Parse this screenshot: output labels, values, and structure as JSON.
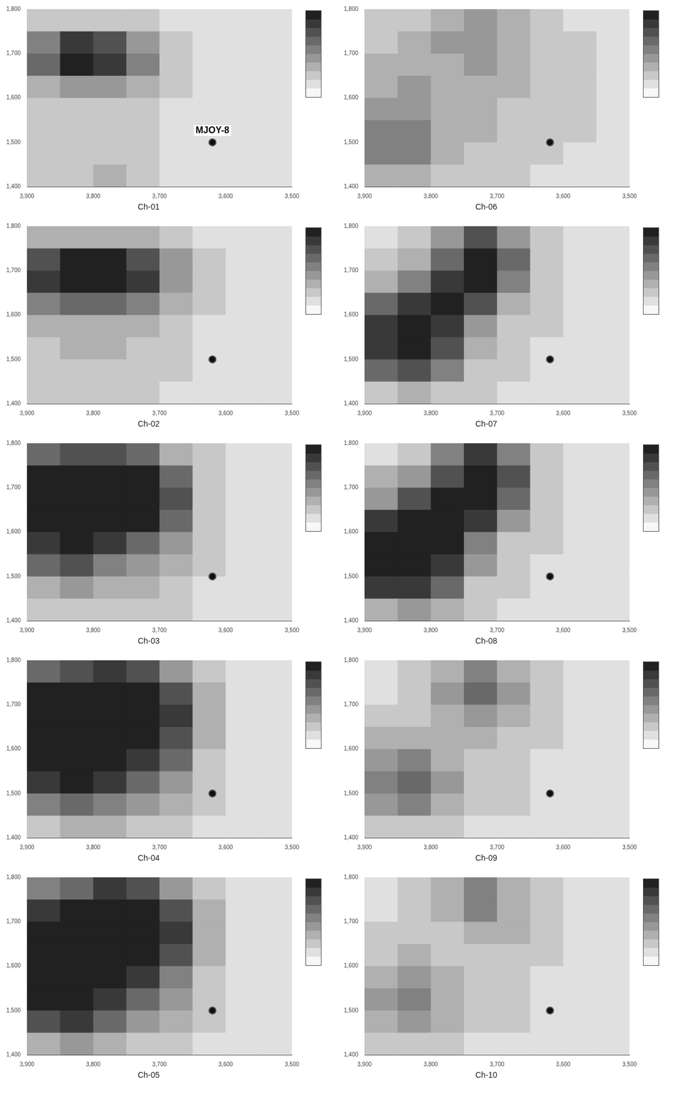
{
  "chart_data": [
    {
      "type": "heatmap",
      "title": "Ch-01",
      "xlim": [
        3900,
        3500
      ],
      "xticks": [
        3900,
        3800,
        3700,
        3600,
        3500
      ],
      "ylim": [
        1400,
        1800
      ],
      "yticks": [
        1400,
        1500,
        1600,
        1700,
        1800
      ],
      "grid": false,
      "cell_x": [
        3875,
        3825,
        3775,
        3725,
        3675,
        3625,
        3575,
        3525
      ],
      "cell_y": [
        1775,
        1725,
        1675,
        1625,
        1575,
        1525,
        1475,
        1425
      ],
      "cell_range": [
        0,
        9
      ],
      "cells": [
        [
          2,
          2,
          2,
          2,
          1,
          1,
          1,
          1
        ],
        [
          5,
          8,
          7,
          4,
          2,
          1,
          1,
          1
        ],
        [
          6,
          9,
          8,
          5,
          2,
          1,
          1,
          1
        ],
        [
          3,
          4,
          4,
          3,
          2,
          1,
          1,
          1
        ],
        [
          2,
          2,
          2,
          2,
          1,
          1,
          1,
          1
        ],
        [
          2,
          2,
          2,
          2,
          1,
          1,
          1,
          1
        ],
        [
          2,
          2,
          2,
          2,
          1,
          1,
          1,
          1
        ],
        [
          2,
          2,
          3,
          2,
          1,
          1,
          1,
          1
        ]
      ],
      "station": {
        "x": 3620,
        "y": 1500
      },
      "annotations": [
        {
          "text": "MJOY-8",
          "x": 3620,
          "y": 1500
        }
      ]
    },
    {
      "type": "heatmap",
      "title": "Ch-06",
      "xlim": [
        3900,
        3500
      ],
      "xticks": [
        3900,
        3800,
        3700,
        3600,
        3500
      ],
      "ylim": [
        1400,
        1800
      ],
      "yticks": [
        1400,
        1500,
        1600,
        1700,
        1800
      ],
      "grid": false,
      "cell_x": [
        3875,
        3825,
        3775,
        3725,
        3675,
        3625,
        3575,
        3525
      ],
      "cell_y": [
        1775,
        1725,
        1675,
        1625,
        1575,
        1525,
        1475,
        1425
      ],
      "cell_range": [
        0,
        9
      ],
      "cells": [
        [
          2,
          2,
          3,
          4,
          3,
          2,
          1,
          1
        ],
        [
          2,
          3,
          4,
          4,
          3,
          2,
          2,
          1
        ],
        [
          3,
          3,
          3,
          4,
          3,
          2,
          2,
          1
        ],
        [
          3,
          4,
          3,
          3,
          3,
          2,
          2,
          1
        ],
        [
          4,
          4,
          3,
          3,
          2,
          2,
          2,
          1
        ],
        [
          5,
          5,
          3,
          3,
          2,
          2,
          2,
          1
        ],
        [
          5,
          5,
          3,
          2,
          2,
          2,
          1,
          1
        ],
        [
          3,
          3,
          2,
          2,
          2,
          1,
          1,
          1
        ]
      ],
      "station": {
        "x": 3620,
        "y": 1500
      }
    },
    {
      "type": "heatmap",
      "title": "Ch-02",
      "xlim": [
        3900,
        3500
      ],
      "xticks": [
        3900,
        3800,
        3700,
        3600,
        3500
      ],
      "ylim": [
        1400,
        1800
      ],
      "yticks": [
        1400,
        1500,
        1600,
        1700,
        1800
      ],
      "grid": false,
      "cell_x": [
        3875,
        3825,
        3775,
        3725,
        3675,
        3625,
        3575,
        3525
      ],
      "cell_y": [
        1775,
        1725,
        1675,
        1625,
        1575,
        1525,
        1475,
        1425
      ],
      "cell_range": [
        0,
        9
      ],
      "cells": [
        [
          3,
          3,
          3,
          3,
          2,
          1,
          1,
          1
        ],
        [
          7,
          9,
          9,
          7,
          4,
          2,
          1,
          1
        ],
        [
          8,
          9,
          9,
          8,
          4,
          2,
          1,
          1
        ],
        [
          5,
          6,
          6,
          5,
          3,
          2,
          1,
          1
        ],
        [
          3,
          3,
          3,
          3,
          2,
          1,
          1,
          1
        ],
        [
          2,
          3,
          3,
          2,
          2,
          1,
          1,
          1
        ],
        [
          2,
          2,
          2,
          2,
          2,
          1,
          1,
          1
        ],
        [
          2,
          2,
          2,
          2,
          1,
          1,
          1,
          1
        ]
      ],
      "station": {
        "x": 3620,
        "y": 1500
      }
    },
    {
      "type": "heatmap",
      "title": "Ch-07",
      "xlim": [
        3900,
        3500
      ],
      "xticks": [
        3900,
        3800,
        3700,
        3600,
        3500
      ],
      "ylim": [
        1400,
        1800
      ],
      "yticks": [
        1400,
        1500,
        1600,
        1700,
        1800
      ],
      "grid": false,
      "cell_x": [
        3875,
        3825,
        3775,
        3725,
        3675,
        3625,
        3575,
        3525
      ],
      "cell_y": [
        1775,
        1725,
        1675,
        1625,
        1575,
        1525,
        1475,
        1425
      ],
      "cell_range": [
        0,
        9
      ],
      "cells": [
        [
          1,
          2,
          4,
          7,
          4,
          2,
          1,
          1
        ],
        [
          2,
          3,
          6,
          9,
          6,
          2,
          1,
          1
        ],
        [
          3,
          5,
          8,
          9,
          5,
          2,
          1,
          1
        ],
        [
          6,
          8,
          9,
          7,
          3,
          2,
          1,
          1
        ],
        [
          8,
          9,
          8,
          4,
          2,
          2,
          1,
          1
        ],
        [
          8,
          9,
          7,
          3,
          2,
          1,
          1,
          1
        ],
        [
          6,
          7,
          5,
          2,
          2,
          1,
          1,
          1
        ],
        [
          2,
          3,
          2,
          2,
          1,
          1,
          1,
          1
        ]
      ],
      "station": {
        "x": 3620,
        "y": 1500
      }
    },
    {
      "type": "heatmap",
      "title": "Ch-03",
      "xlim": [
        3900,
        3500
      ],
      "xticks": [
        3900,
        3800,
        3700,
        3600,
        3500
      ],
      "ylim": [
        1400,
        1800
      ],
      "yticks": [
        1400,
        1500,
        1600,
        1700,
        1800
      ],
      "grid": false,
      "cell_x": [
        3875,
        3825,
        3775,
        3725,
        3675,
        3625,
        3575,
        3525
      ],
      "cell_y": [
        1775,
        1725,
        1675,
        1625,
        1575,
        1525,
        1475,
        1425
      ],
      "cell_range": [
        0,
        9
      ],
      "cells": [
        [
          6,
          7,
          7,
          6,
          3,
          2,
          1,
          1
        ],
        [
          9,
          9,
          9,
          9,
          6,
          2,
          1,
          1
        ],
        [
          9,
          9,
          9,
          9,
          7,
          2,
          1,
          1
        ],
        [
          9,
          9,
          9,
          9,
          6,
          2,
          1,
          1
        ],
        [
          8,
          9,
          8,
          6,
          4,
          2,
          1,
          1
        ],
        [
          6,
          7,
          5,
          4,
          3,
          2,
          1,
          1
        ],
        [
          3,
          4,
          3,
          3,
          2,
          1,
          1,
          1
        ],
        [
          2,
          2,
          2,
          2,
          2,
          1,
          1,
          1
        ]
      ],
      "station": {
        "x": 3620,
        "y": 1500
      }
    },
    {
      "type": "heatmap",
      "title": "Ch-08",
      "xlim": [
        3900,
        3500
      ],
      "xticks": [
        3900,
        3800,
        3700,
        3600,
        3500
      ],
      "ylim": [
        1400,
        1800
      ],
      "yticks": [
        1400,
        1500,
        1600,
        1700,
        1800
      ],
      "grid": false,
      "cell_x": [
        3875,
        3825,
        3775,
        3725,
        3675,
        3625,
        3575,
        3525
      ],
      "cell_y": [
        1775,
        1725,
        1675,
        1625,
        1575,
        1525,
        1475,
        1425
      ],
      "cell_range": [
        0,
        9
      ],
      "cells": [
        [
          1,
          2,
          5,
          8,
          5,
          2,
          1,
          1
        ],
        [
          3,
          4,
          7,
          9,
          7,
          2,
          1,
          1
        ],
        [
          4,
          7,
          9,
          9,
          6,
          2,
          1,
          1
        ],
        [
          8,
          9,
          9,
          8,
          4,
          2,
          1,
          1
        ],
        [
          9,
          9,
          9,
          5,
          2,
          2,
          1,
          1
        ],
        [
          9,
          9,
          8,
          4,
          2,
          1,
          1,
          1
        ],
        [
          8,
          8,
          6,
          2,
          2,
          1,
          1,
          1
        ],
        [
          3,
          4,
          3,
          2,
          1,
          1,
          1,
          1
        ]
      ],
      "station": {
        "x": 3620,
        "y": 1500
      }
    },
    {
      "type": "heatmap",
      "title": "Ch-04",
      "xlim": [
        3900,
        3500
      ],
      "xticks": [
        3900,
        3800,
        3700,
        3600,
        3500
      ],
      "ylim": [
        1400,
        1800
      ],
      "yticks": [
        1400,
        1500,
        1600,
        1700,
        1800
      ],
      "grid": false,
      "cell_x": [
        3875,
        3825,
        3775,
        3725,
        3675,
        3625,
        3575,
        3525
      ],
      "cell_y": [
        1775,
        1725,
        1675,
        1625,
        1575,
        1525,
        1475,
        1425
      ],
      "cell_range": [
        0,
        9
      ],
      "cells": [
        [
          6,
          7,
          8,
          7,
          4,
          2,
          1,
          1
        ],
        [
          9,
          9,
          9,
          9,
          7,
          3,
          1,
          1
        ],
        [
          9,
          9,
          9,
          9,
          8,
          3,
          1,
          1
        ],
        [
          9,
          9,
          9,
          9,
          7,
          3,
          1,
          1
        ],
        [
          9,
          9,
          9,
          8,
          6,
          2,
          1,
          1
        ],
        [
          8,
          9,
          8,
          6,
          4,
          2,
          1,
          1
        ],
        [
          5,
          6,
          5,
          4,
          3,
          2,
          1,
          1
        ],
        [
          2,
          3,
          3,
          2,
          2,
          1,
          1,
          1
        ]
      ],
      "station": {
        "x": 3620,
        "y": 1500
      }
    },
    {
      "type": "heatmap",
      "title": "Ch-09",
      "xlim": [
        3900,
        3500
      ],
      "xticks": [
        3900,
        3800,
        3700,
        3600,
        3500
      ],
      "ylim": [
        1400,
        1800
      ],
      "yticks": [
        1400,
        1500,
        1600,
        1700,
        1800
      ],
      "grid": false,
      "cell_x": [
        3875,
        3825,
        3775,
        3725,
        3675,
        3625,
        3575,
        3525
      ],
      "cell_y": [
        1775,
        1725,
        1675,
        1625,
        1575,
        1525,
        1475,
        1425
      ],
      "cell_range": [
        0,
        9
      ],
      "cells": [
        [
          1,
          2,
          3,
          5,
          3,
          2,
          1,
          1
        ],
        [
          1,
          2,
          4,
          6,
          4,
          2,
          1,
          1
        ],
        [
          2,
          2,
          3,
          4,
          3,
          2,
          1,
          1
        ],
        [
          3,
          3,
          3,
          3,
          2,
          2,
          1,
          1
        ],
        [
          4,
          5,
          3,
          2,
          2,
          1,
          1,
          1
        ],
        [
          5,
          6,
          4,
          2,
          2,
          1,
          1,
          1
        ],
        [
          4,
          5,
          3,
          2,
          2,
          1,
          1,
          1
        ],
        [
          2,
          2,
          2,
          1,
          1,
          1,
          1,
          1
        ]
      ],
      "station": {
        "x": 3620,
        "y": 1500
      }
    },
    {
      "type": "heatmap",
      "title": "Ch-05",
      "xlim": [
        3900,
        3500
      ],
      "xticks": [
        3900,
        3800,
        3700,
        3600,
        3500
      ],
      "ylim": [
        1400,
        1800
      ],
      "yticks": [
        1400,
        1500,
        1600,
        1700,
        1800
      ],
      "grid": false,
      "cell_x": [
        3875,
        3825,
        3775,
        3725,
        3675,
        3625,
        3575,
        3525
      ],
      "cell_y": [
        1775,
        1725,
        1675,
        1625,
        1575,
        1525,
        1475,
        1425
      ],
      "cell_range": [
        0,
        9
      ],
      "cells": [
        [
          5,
          6,
          8,
          7,
          4,
          2,
          1,
          1
        ],
        [
          8,
          9,
          9,
          9,
          7,
          3,
          1,
          1
        ],
        [
          9,
          9,
          9,
          9,
          8,
          3,
          1,
          1
        ],
        [
          9,
          9,
          9,
          9,
          7,
          3,
          1,
          1
        ],
        [
          9,
          9,
          9,
          8,
          5,
          2,
          1,
          1
        ],
        [
          9,
          9,
          8,
          6,
          4,
          2,
          1,
          1
        ],
        [
          7,
          8,
          6,
          4,
          3,
          2,
          1,
          1
        ],
        [
          3,
          4,
          3,
          2,
          2,
          1,
          1,
          1
        ]
      ],
      "station": {
        "x": 3620,
        "y": 1500
      }
    },
    {
      "type": "heatmap",
      "title": "Ch-10",
      "xlim": [
        3900,
        3500
      ],
      "xticks": [
        3900,
        3800,
        3700,
        3600,
        3500
      ],
      "ylim": [
        1400,
        1800
      ],
      "yticks": [
        1400,
        1500,
        1600,
        1700,
        1800
      ],
      "grid": false,
      "cell_x": [
        3875,
        3825,
        3775,
        3725,
        3675,
        3625,
        3575,
        3525
      ],
      "cell_y": [
        1775,
        1725,
        1675,
        1625,
        1575,
        1525,
        1475,
        1425
      ],
      "cell_range": [
        0,
        9
      ],
      "cells": [
        [
          1,
          2,
          3,
          5,
          3,
          2,
          1,
          1
        ],
        [
          1,
          2,
          3,
          5,
          3,
          2,
          1,
          1
        ],
        [
          2,
          2,
          2,
          3,
          3,
          2,
          1,
          1
        ],
        [
          2,
          3,
          2,
          2,
          2,
          2,
          1,
          1
        ],
        [
          3,
          4,
          3,
          2,
          2,
          1,
          1,
          1
        ],
        [
          4,
          5,
          3,
          2,
          2,
          1,
          1,
          1
        ],
        [
          3,
          4,
          3,
          2,
          2,
          1,
          1,
          1
        ],
        [
          2,
          2,
          2,
          1,
          1,
          1,
          1,
          1
        ]
      ],
      "station": {
        "x": 3620,
        "y": 1500
      }
    }
  ]
}
